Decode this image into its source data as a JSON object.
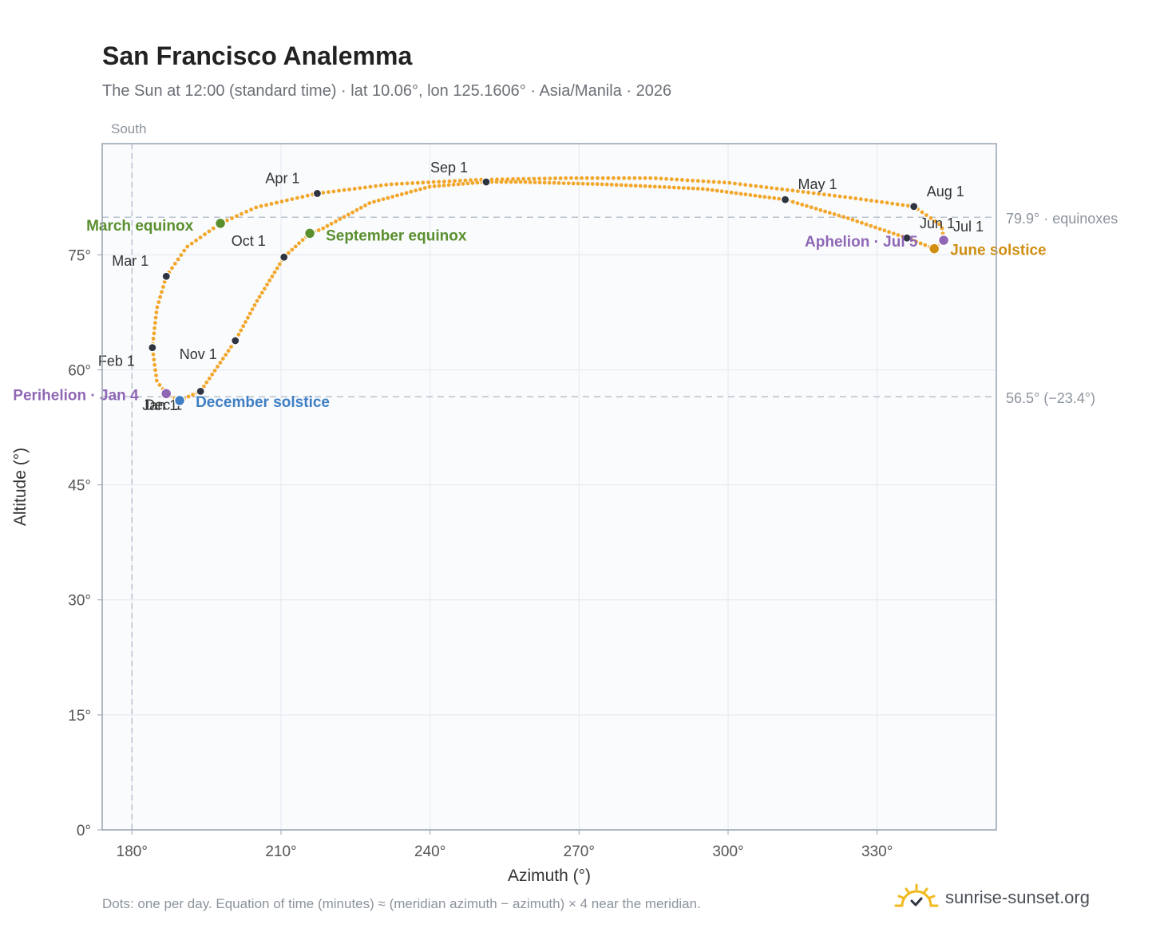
{
  "title": "San Francisco Analemma",
  "subtitle": "The Sun at 12:00 (standard time) · lat 10.06°, lon 125.1606° · Asia/Manila · 2026",
  "footnote": "Dots: one per day. Equation of time (minutes) ≈ (meridian azimuth − azimuth) × 4 near the meridian.",
  "brand": "sunrise-sunset.org",
  "colors": {
    "path": "#f2a72b",
    "month_marker": "#2e3440",
    "equinox": "#5a8f2e",
    "june_solstice": "#d08e12",
    "december_solstice": "#3f7ec4",
    "apsis": "#8f67b5",
    "grid": "#e3e8ef",
    "plot_bg": "#f9fbfd",
    "reference_line": "#b9c2cd",
    "logo": "#f2b81e"
  },
  "chart_data": {
    "type": "scatter",
    "xlabel": "Azimuth (°)",
    "ylabel": "Altitude (°)",
    "xlim": [
      174,
      354
    ],
    "ylim": [
      0,
      89.5
    ],
    "grid": true,
    "x_ticks": [
      {
        "value": 180,
        "label": "180°"
      },
      {
        "value": 210,
        "label": "210°"
      },
      {
        "value": 240,
        "label": "240°"
      },
      {
        "value": 270,
        "label": "270°"
      },
      {
        "value": 300,
        "label": "300°"
      },
      {
        "value": 330,
        "label": "330°"
      }
    ],
    "y_ticks": [
      {
        "value": 0,
        "label": "0°"
      },
      {
        "value": 15,
        "label": "15°"
      },
      {
        "value": 30,
        "label": "30°"
      },
      {
        "value": 45,
        "label": "45°"
      },
      {
        "value": 60,
        "label": "60°"
      },
      {
        "value": 75,
        "label": "75°"
      }
    ],
    "meridian": {
      "azimuth": 180,
      "label": "South"
    },
    "reference_lines": [
      {
        "altitude": 79.9,
        "label": "79.9° · equinoxes"
      },
      {
        "altitude": 56.5,
        "label": "56.5° (−23.4°)"
      }
    ],
    "month_markers": [
      {
        "label": "Jan 1",
        "az": 186.9,
        "alt": 56.8
      },
      {
        "label": "Feb 1",
        "az": 184.1,
        "alt": 62.9
      },
      {
        "label": "Mar 1",
        "az": 186.9,
        "alt": 72.2
      },
      {
        "label": "Apr 1",
        "az": 217.3,
        "alt": 83.0
      },
      {
        "label": "May 1",
        "az": 311.5,
        "alt": 82.2
      },
      {
        "label": "Jun 1",
        "az": 336.0,
        "alt": 77.2
      },
      {
        "label": "Jul 1",
        "az": 343.4,
        "alt": 77.1
      },
      {
        "label": "Aug 1",
        "az": 337.4,
        "alt": 81.3
      },
      {
        "label": "Sep 1",
        "az": 251.3,
        "alt": 84.5
      },
      {
        "label": "Oct 1",
        "az": 210.6,
        "alt": 74.7
      },
      {
        "label": "Nov 1",
        "az": 200.8,
        "alt": 63.8
      },
      {
        "label": "Dec 1",
        "az": 193.8,
        "alt": 57.2
      }
    ],
    "events": [
      {
        "label": "March equinox",
        "az": 197.8,
        "alt": 79.1,
        "color_key": "equinox"
      },
      {
        "label": "September equinox",
        "az": 215.8,
        "alt": 77.8,
        "color_key": "equinox"
      },
      {
        "label": "June solstice",
        "az": 341.5,
        "alt": 75.8,
        "color_key": "june_solstice"
      },
      {
        "label": "December solstice",
        "az": 189.6,
        "alt": 56.0,
        "color_key": "december_solstice"
      },
      {
        "label": "Perihelion · Jan 4",
        "az": 186.9,
        "alt": 56.9,
        "color_key": "apsis"
      },
      {
        "label": "Aphelion · Jul 5",
        "az": 343.4,
        "alt": 76.9,
        "color_key": "apsis"
      }
    ],
    "path_segments": [
      {
        "points": [
          [
            189.6,
            56.0
          ],
          [
            186.9,
            56.8
          ],
          [
            186.9,
            56.9
          ],
          [
            185.0,
            58.5
          ],
          [
            184.1,
            62.9
          ],
          [
            185.0,
            68.0
          ],
          [
            186.9,
            72.2
          ],
          [
            191.0,
            76.0
          ],
          [
            197.8,
            79.1
          ],
          [
            205.0,
            81.2
          ],
          [
            217.3,
            83.0
          ],
          [
            232.0,
            84.2
          ],
          [
            250.0,
            84.8
          ],
          [
            268.0,
            85.0
          ],
          [
            285.0,
            85.0
          ],
          [
            300.0,
            84.4
          ],
          [
            311.5,
            83.5
          ],
          [
            324.0,
            82.5
          ],
          [
            337.4,
            81.3
          ],
          [
            343.0,
            78.8
          ],
          [
            343.4,
            77.1
          ]
        ]
      },
      {
        "points": [
          [
            343.4,
            77.1
          ],
          [
            343.4,
            76.9
          ],
          [
            341.5,
            75.8
          ],
          [
            336.0,
            77.2
          ],
          [
            324.0,
            79.8
          ],
          [
            311.5,
            82.2
          ],
          [
            295.0,
            83.6
          ],
          [
            275.0,
            84.2
          ],
          [
            258.0,
            84.5
          ],
          [
            251.3,
            84.5
          ],
          [
            240.0,
            83.9
          ],
          [
            228.0,
            81.8
          ],
          [
            218.0,
            78.3
          ],
          [
            215.8,
            77.8
          ],
          [
            210.6,
            74.7
          ],
          [
            205.0,
            68.8
          ],
          [
            200.8,
            63.8
          ],
          [
            193.8,
            57.2
          ],
          [
            189.6,
            56.0
          ]
        ]
      }
    ]
  }
}
